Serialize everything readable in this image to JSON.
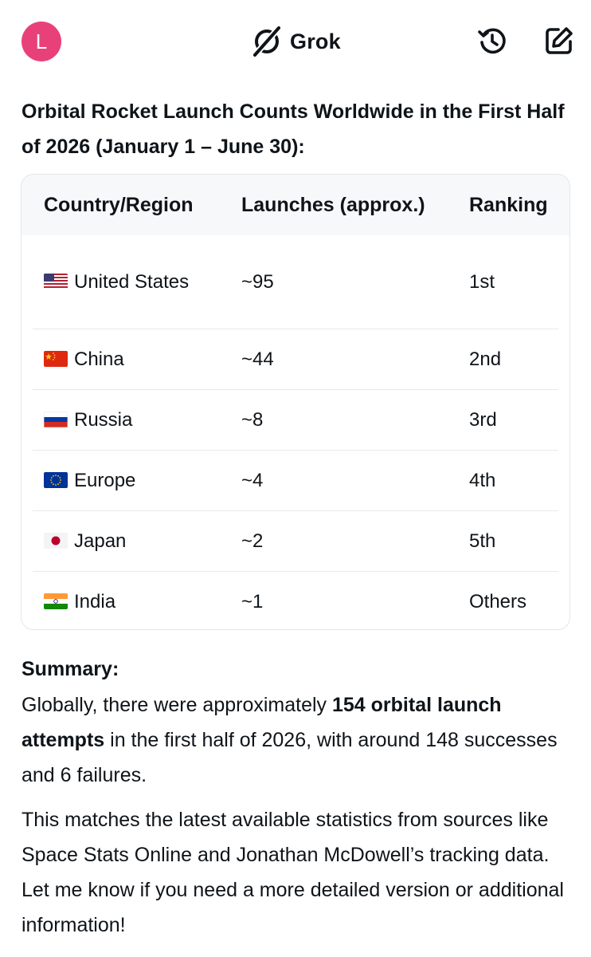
{
  "header": {
    "avatar_letter": "L",
    "brand_name": "Grok",
    "icons": [
      "grok-logo-icon",
      "history-icon",
      "compose-icon"
    ]
  },
  "title": "Orbital Rocket Launch Counts Worldwide in the First Half of 2026 (January 1 – June 30):",
  "table": {
    "headers": [
      "Country/Region",
      "Launches (approx.)",
      "Ranking"
    ],
    "rows": [
      {
        "flag": "us-flag-icon",
        "country": "United States",
        "launches": "~95",
        "ranking": "1st"
      },
      {
        "flag": "china-flag-icon",
        "country": "China",
        "launches": "~44",
        "ranking": "2nd"
      },
      {
        "flag": "russia-flag-icon",
        "country": "Russia",
        "launches": "~8",
        "ranking": "3rd"
      },
      {
        "flag": "eu-flag-icon",
        "country": "Europe",
        "launches": "~4",
        "ranking": "4th"
      },
      {
        "flag": "japan-flag-icon",
        "country": "Japan",
        "launches": "~2",
        "ranking": "5th"
      },
      {
        "flag": "india-flag-icon",
        "country": "India",
        "launches": "~1",
        "ranking": "Others"
      }
    ]
  },
  "summary": {
    "label": "Summary:",
    "p1_before": "Globally, there were approximately ",
    "p1_bold": "154 orbital launch attempts",
    "p1_after": " in the first half of 2026, with around 148 successes and 6 failures.",
    "p2": "This matches the latest available statistics from sources like Space Stats Online and Jonathan McDowell’s tracking data. Let me know if you need a more detailed version or additional information!"
  },
  "colors": {
    "avatar_bg": "#e8417a",
    "text": "#0f1419",
    "header_row_bg": "#f7f8f9",
    "border": "#e3e6e9"
  }
}
